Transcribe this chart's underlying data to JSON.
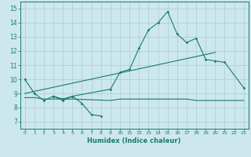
{
  "xlabel": "Humidex (Indice chaleur)",
  "xlim": [
    -0.5,
    23.5
  ],
  "ylim": [
    6.5,
    15.5
  ],
  "xticks": [
    0,
    1,
    2,
    3,
    4,
    5,
    6,
    7,
    8,
    9,
    10,
    11,
    12,
    13,
    14,
    15,
    16,
    17,
    18,
    19,
    20,
    21,
    22,
    23
  ],
  "yticks": [
    7,
    8,
    9,
    10,
    11,
    12,
    13,
    14,
    15
  ],
  "bg_color": "#cce8ee",
  "grid_color": "#aacccc",
  "line_color": "#1a7a6e",
  "series_main": {
    "x": [
      0,
      1,
      2,
      3,
      4,
      5,
      9,
      10,
      11,
      12,
      13,
      14,
      15,
      16,
      17,
      18,
      19,
      20,
      21,
      23
    ],
    "y": [
      10.0,
      9.0,
      8.5,
      8.8,
      8.6,
      8.8,
      9.3,
      10.5,
      10.7,
      12.2,
      13.5,
      14.0,
      14.8,
      13.2,
      12.6,
      12.9,
      11.4,
      11.3,
      11.2,
      9.4
    ]
  },
  "series_dip": {
    "x": [
      3,
      4,
      5,
      6,
      7,
      8
    ],
    "y": [
      8.8,
      8.5,
      8.8,
      8.3,
      7.5,
      7.4
    ]
  },
  "series_upper_trend": {
    "x": [
      0,
      20
    ],
    "y": [
      9.0,
      11.9
    ]
  },
  "series_lower_flat": {
    "x": [
      0,
      1,
      2,
      3,
      4,
      5,
      9,
      10,
      11,
      12,
      13,
      14,
      15,
      16,
      17,
      18,
      19,
      20,
      21,
      22,
      23
    ],
    "y": [
      8.7,
      8.7,
      8.6,
      8.6,
      8.6,
      8.6,
      8.5,
      8.6,
      8.6,
      8.6,
      8.6,
      8.6,
      8.6,
      8.6,
      8.6,
      8.5,
      8.5,
      8.5,
      8.5,
      8.5,
      8.5
    ]
  }
}
